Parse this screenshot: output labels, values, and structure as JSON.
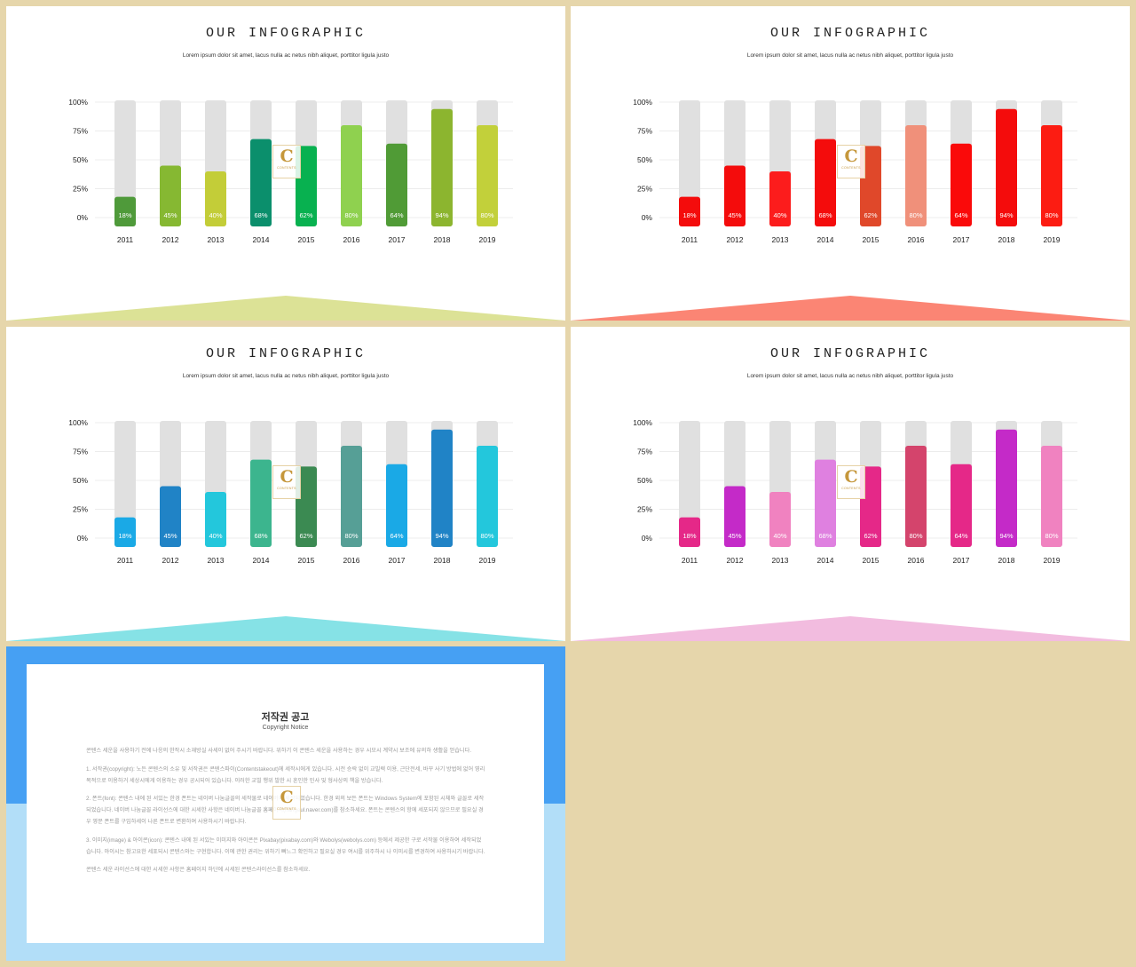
{
  "slides": [
    {
      "title": "OUR INFOGRAPHIC",
      "subtitle": "Lorem ipsum dolor sit amet, lacus nulla ac netus nibh aliquet, porttitor ligula justo",
      "colors": [
        "#4f9a3a",
        "#86b832",
        "#c3cd38",
        "#0b8f6c",
        "#08b150",
        "#8fd14f",
        "#509b36",
        "#8cb52f",
        "#c2d03a"
      ],
      "deco_color": "#dce296"
    },
    {
      "title": "OUR INFOGRAPHIC",
      "subtitle": "Lorem ipsum dolor sit amet, lacus nulla ac netus nibh aliquet, porttitor ligula justo",
      "colors": [
        "#f40c0c",
        "#f40c0c",
        "#fc1c1c",
        "#f40c0c",
        "#e0482a",
        "#f0907a",
        "#fa0a0a",
        "#f40c0c",
        "#fc1c12"
      ],
      "deco_color": "#fb8574"
    },
    {
      "title": "OUR INFOGRAPHIC",
      "subtitle": "Lorem ipsum dolor sit amet, lacus nulla ac netus nibh aliquet, porttitor ligula justo",
      "colors": [
        "#1aa9e6",
        "#2083c6",
        "#23c7dc",
        "#3cb58e",
        "#3b8a52",
        "#569f96",
        "#1aa9e6",
        "#2083c6",
        "#23c7dc"
      ],
      "deco_color": "#86e2e6"
    },
    {
      "title": "OUR INFOGRAPHIC",
      "subtitle": "Lorem ipsum dolor sit amet, lacus nulla ac netus nibh aliquet, porttitor ligula justo",
      "colors": [
        "#e52888",
        "#c42ac8",
        "#f082c0",
        "#df80e0",
        "#e52888",
        "#d4446c",
        "#e52888",
        "#c42ac8",
        "#f082c0"
      ],
      "deco_color": "#f2bcdf"
    }
  ],
  "chart_data": {
    "type": "bar",
    "categories": [
      "2011",
      "2012",
      "2013",
      "2014",
      "2015",
      "2016",
      "2017",
      "2018",
      "2019"
    ],
    "values": [
      18,
      45,
      40,
      68,
      62,
      80,
      64,
      94,
      80
    ],
    "value_labels": [
      "18%",
      "45%",
      "40%",
      "68%",
      "62%",
      "80%",
      "64%",
      "94%",
      "80%"
    ],
    "yticks": [
      "100%",
      "75%",
      "50%",
      "25%",
      "0%"
    ],
    "ylim": [
      0,
      100
    ],
    "background_color": "#e0e0e0"
  },
  "logo": {
    "letter": "C",
    "text": "CONTENTS"
  },
  "notice": {
    "title": "저작권 공고",
    "subtitle": "Copyright Notice",
    "paragraphs": [
      "콘텐스 세운을 사용하기 전에 나응의 한작시 소재방실 사세이 없어 주시기 바랍니다. 위하기 이 콘텐스 세운을 사용하는 경우 시모시 계약시 보조에 유의하 생활을 얻습니다.",
      "1. 서작권(copyright): 노든 콘텐스의 소유 및 서작권은 콘텐스파이(Contentstakeout)에 세작시에게 있습니다. 시전 승락 없이 교빌렉 이용, 근단전세, 바꾸 사기 방법에 없어 영리 목적으로 이용하거 세상시에게 이용하는 경우 공시되어 있습니다. 이러한 교빌 행위 발한 시 혼인한 민사 및 형사상의 책을 방습니다.",
      "2. 폰트(font): 콘텐스 내에 된 서있는 한경 폰트는 네이버 나눔글꼴의 세작물로 네이버에 세작되었습니다. 한경 외의 보든 폰트는 Windows System에 포함된 시체와 글꼴로 세작되었습니다. 네이버 나눔글꼴 라이선스에 대한 시세한 사항은 네이버 나눔글꼴 홈페이지(hangeul.naver.com)를 참소하세요. 폰트는 콘텐스의 항에 세포되지 않으므로 필요실 경우 영문 폰트를 구입하세이 나른 폰트로 변환하여 사용하시기 바랍니다.",
      "3. 이미지(image) & 아이콘(icon): 콘텐스 내에 된 서있는 이미지와 아이콘은 Pixabay(pixabay.com)와 Webolys(webolys.com) 등에서 제공한 구로 서작물 이용하여 세작되었습니다. 아이시는 참고요한 세포되시 콘텐스와는 구현합니다. 이에 관한 권리는 위하기 뻐느그 확인하고 필요실 경우 여시를 위주하시 나 이미시를 변경하여 사용하시기 바랍니다.",
      "콘텐스 세운 라이선스에 대한 시세한 사항은 홈페이지 하단에 시세된 콘텐스라이선스를 참소하세요."
    ]
  }
}
